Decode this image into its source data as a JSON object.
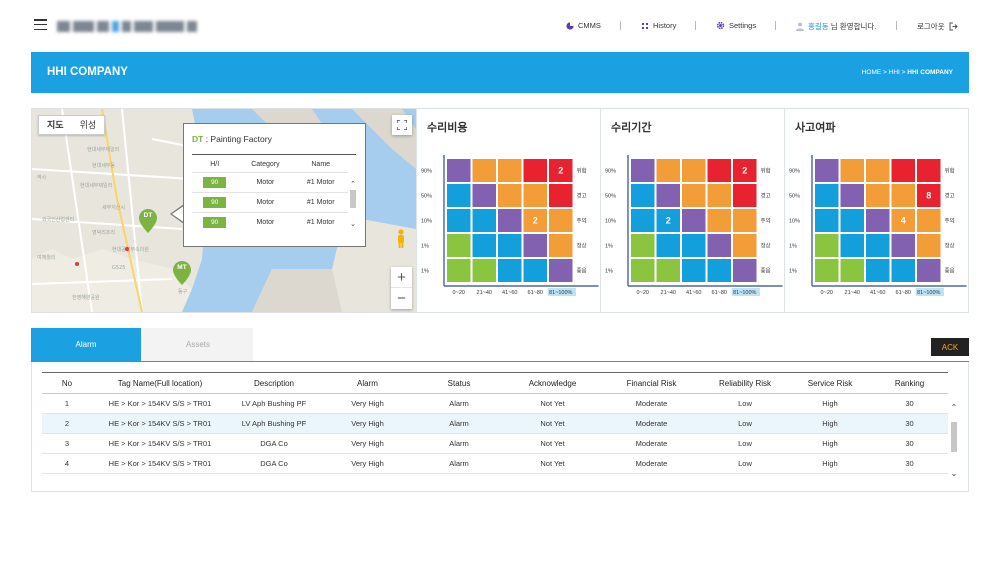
{
  "nav": {
    "cmms": "CMMS",
    "history": "History",
    "settings": "Settings",
    "user_name": "홍길동",
    "user_greeting": "님 환영합니다.",
    "logout": "로그아웃"
  },
  "band": {
    "title": "HHI COMPANY",
    "crumb_prefix": "HOME > HHI > ",
    "crumb_current": "HHI COMPANY"
  },
  "map": {
    "type_map": "지도",
    "type_satellite": "위성",
    "pins": [
      "DT",
      "MT"
    ],
    "zoom_in": "+",
    "zoom_out": "−",
    "popup": {
      "code": "DT",
      "name": " : Painting Factory",
      "headers": [
        "H/I",
        "Category",
        "Name"
      ],
      "rows": [
        {
          "hi": "90",
          "category": "Motor",
          "name": "#1 Motor"
        },
        {
          "hi": "90",
          "category": "Motor",
          "name": "#1 Motor"
        },
        {
          "hi": "90",
          "category": "Motor",
          "name": "#1 Motor"
        }
      ]
    }
  },
  "matrices": [
    {
      "title": "수리비용",
      "marker": {
        "row": 0,
        "col": 4,
        "value": "2"
      },
      "marker2": {
        "row": 2,
        "col": 3,
        "value": "2"
      }
    },
    {
      "title": "수리기간",
      "marker": {
        "row": 0,
        "col": 4,
        "value": "2"
      },
      "marker2": {
        "row": 2,
        "col": 1,
        "value": "2"
      }
    },
    {
      "title": "사고여파",
      "marker": {
        "row": 1,
        "col": 4,
        "value": "8"
      },
      "marker2": {
        "row": 2,
        "col": 3,
        "value": "4"
      }
    }
  ],
  "matrix_common": {
    "y_labels": [
      "90%",
      "50%",
      "10%",
      "1%",
      "1%"
    ],
    "x_labels": [
      "0~20",
      "21~40",
      "41~60",
      "61~80",
      "81~100%"
    ],
    "right_labels": [
      "위험",
      "경고",
      "주의",
      "정상",
      "좋음"
    ],
    "colors": {
      "red": "#e8222e",
      "orange": "#f29d38",
      "purple": "#8262b0",
      "blue": "#139fdc",
      "green": "#8bc53f"
    },
    "grid": [
      [
        "purple",
        "orange",
        "orange",
        "red",
        "red"
      ],
      [
        "blue",
        "purple",
        "orange",
        "orange",
        "red"
      ],
      [
        "blue",
        "blue",
        "purple",
        "orange",
        "orange"
      ],
      [
        "green",
        "blue",
        "blue",
        "purple",
        "orange"
      ],
      [
        "green",
        "green",
        "blue",
        "blue",
        "purple"
      ]
    ]
  },
  "tabs": {
    "alarm": "Alarm",
    "assets": "Assets"
  },
  "ack_label": "ACK",
  "alarm_table": {
    "headers": [
      "No",
      "Tag Name(Full location)",
      "Description",
      "Alarm",
      "Status",
      "Acknowledge",
      "Financial Risk",
      "Reliability Risk",
      "Service Risk",
      "Ranking"
    ],
    "rows": [
      [
        "1",
        "HE > Kor > 154KV S/S > TR01",
        "LV Aph Bushing PF",
        "Very High",
        "Alarm",
        "Not Yet",
        "Moderate",
        "Low",
        "High",
        "30"
      ],
      [
        "2",
        "HE > Kor > 154KV S/S > TR01",
        "LV Aph Bushing PF",
        "Very High",
        "Alarm",
        "Not Yet",
        "Moderate",
        "Low",
        "High",
        "30"
      ],
      [
        "3",
        "HE > Kor > 154KV S/S > TR01",
        "DGA Co",
        "Very High",
        "Alarm",
        "Not Yet",
        "Moderate",
        "Low",
        "High",
        "30"
      ],
      [
        "4",
        "HE > Kor > 154KV S/S > TR01",
        "DGA Co",
        "Very High",
        "Alarm",
        "Not Yet",
        "Moderate",
        "Low",
        "High",
        "30"
      ]
    ]
  }
}
